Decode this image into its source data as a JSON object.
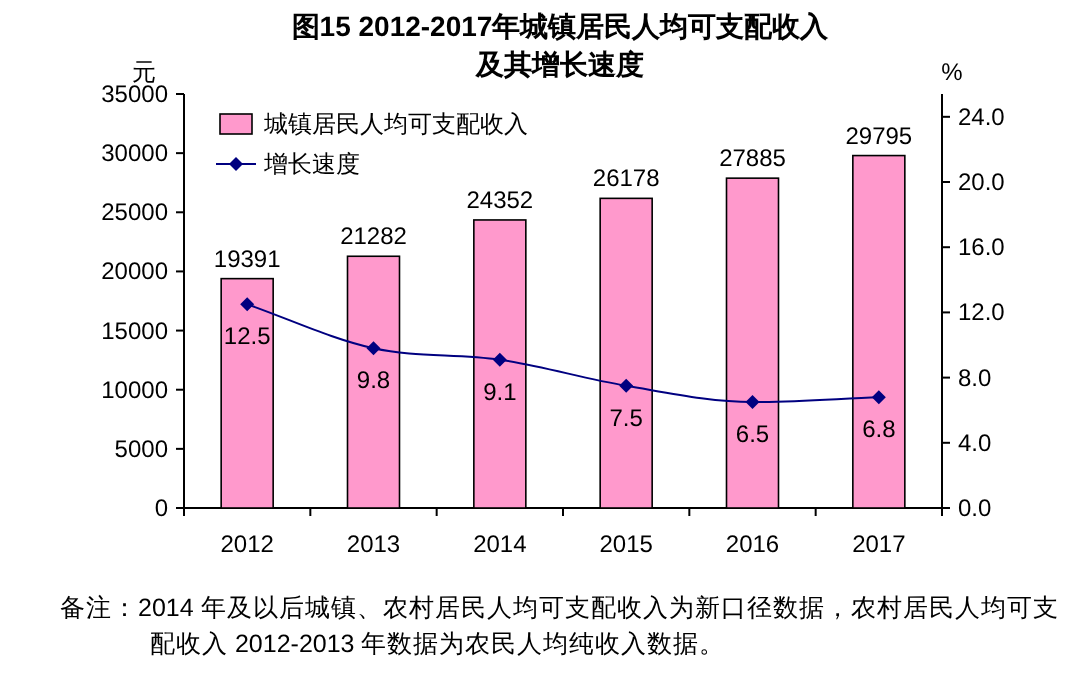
{
  "chart_data": {
    "type": "bar",
    "title": "图15  2012-2017年城镇居民人均可支配收入",
    "subtitle": "及其增长速度",
    "ylabel": "元",
    "y2label": "%",
    "categories": [
      "2012",
      "2013",
      "2014",
      "2015",
      "2016",
      "2017"
    ],
    "series": [
      {
        "name": "城镇居民人均可支配收入",
        "color": "#ff99cc",
        "values": [
          19391,
          21282,
          24352,
          26178,
          27885,
          29795
        ]
      },
      {
        "name": "增长速度",
        "type": "line",
        "axis": "y2",
        "color": "#000080",
        "marker": "diamond",
        "values": [
          12.5,
          9.8,
          9.1,
          7.5,
          6.5,
          6.8
        ]
      }
    ],
    "ylim": [
      0,
      35000
    ],
    "yticks": [
      0,
      5000,
      10000,
      15000,
      20000,
      25000,
      30000,
      35000
    ],
    "y2lim": [
      0,
      25.4
    ],
    "y2ticks": [
      {
        "value": 0,
        "label": "0.0"
      },
      {
        "value": 4,
        "label": "4.0"
      },
      {
        "value": 8,
        "label": "8.0"
      },
      {
        "value": 12,
        "label": "12.0"
      },
      {
        "value": 16,
        "label": "16.0"
      },
      {
        "value": 20,
        "label": "20.0"
      },
      {
        "value": 24,
        "label": "24.0"
      }
    ],
    "data_labels": true,
    "grid": false,
    "legend": "top left",
    "annotations": [
      "备注：2014 年及以后城镇、农村居民人均可支配收入为新口径数据，农村居民人均可支配收入 2012-2013 年数据为农民人均纯收入数据。"
    ]
  }
}
